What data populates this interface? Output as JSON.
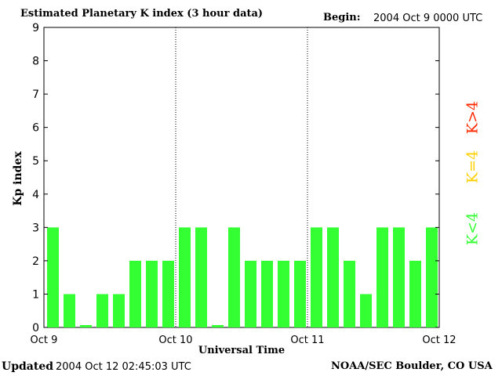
{
  "header": {
    "title": "Estimated Planetary K index (3 hour data)",
    "begin_label": "Begin:",
    "begin_value": "2004 Oct 9 0000 UTC"
  },
  "footer": {
    "updated_label": "Updated",
    "updated_value": "2004 Oct 12 02:45:03 UTC",
    "source": "NOAA/SEC Boulder, CO USA"
  },
  "legend": {
    "high": "K>4",
    "mid": "K=4",
    "low": "K<4",
    "colors": {
      "high": "#ff2a00",
      "mid": "#ffd000",
      "low": "#33ff33"
    }
  },
  "chart_data": {
    "type": "bar",
    "title": "Estimated Planetary K index (3 hour data)",
    "xlabel": "Universal Time",
    "ylabel": "Kp index",
    "ylim": [
      0,
      9
    ],
    "yticks": [
      "0",
      "1",
      "2",
      "3",
      "4",
      "5",
      "6",
      "7",
      "8",
      "9"
    ],
    "xticks": [
      "Oct 9",
      "Oct 10",
      "Oct 11",
      "Oct 12"
    ],
    "day_separators": [
      "Oct 10",
      "Oct 11"
    ],
    "bar_color": "#33ff33",
    "values": [
      3,
      1,
      0,
      1,
      1,
      2,
      2,
      2,
      3,
      3,
      0,
      3,
      2,
      2,
      2,
      2,
      3,
      3,
      2,
      1,
      3,
      3,
      2,
      3
    ]
  }
}
